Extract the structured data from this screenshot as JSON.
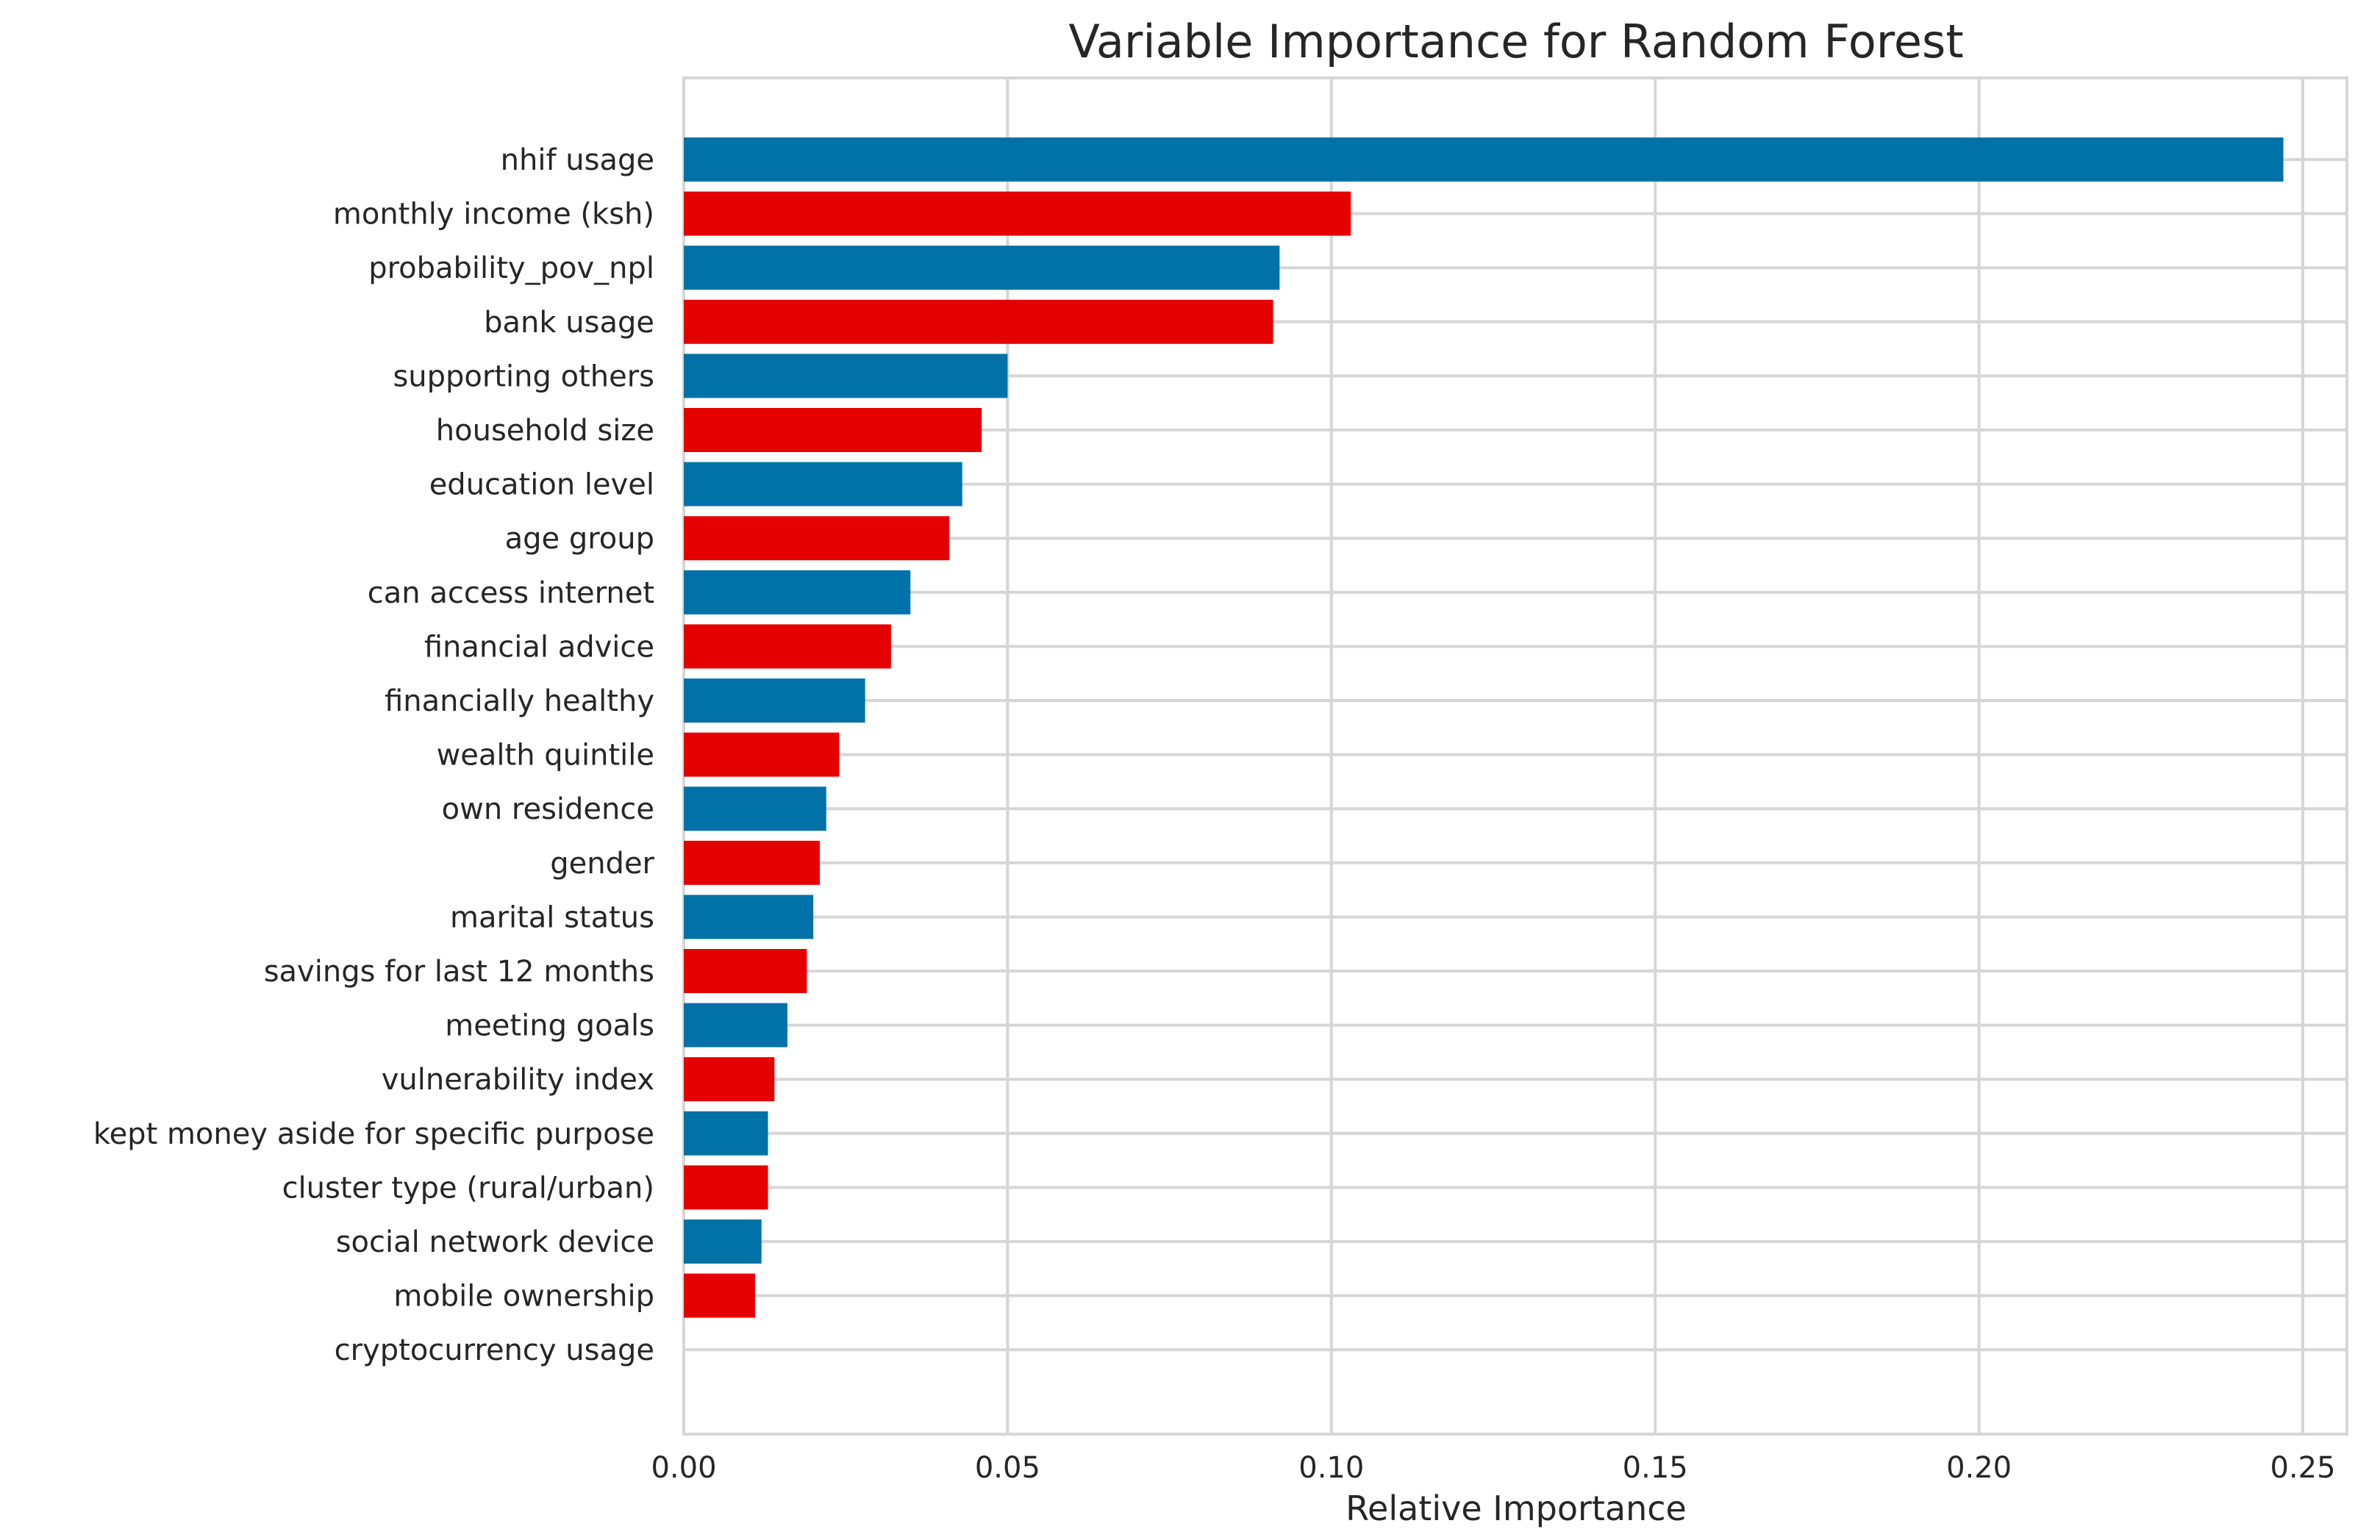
{
  "chart_data": {
    "type": "bar",
    "orientation": "horizontal",
    "title": "Variable Importance for Random Forest",
    "xlabel": "Relative Importance",
    "ylabel": "",
    "xlim": [
      0.0,
      0.26
    ],
    "xticks": [
      0.0,
      0.05,
      0.1,
      0.15,
      0.2,
      0.25
    ],
    "xtick_labels": [
      "0.00",
      "0.05",
      "0.10",
      "0.15",
      "0.20",
      "0.25"
    ],
    "grid": true,
    "colors": {
      "blue": "#0072a7",
      "red": "#e50000"
    },
    "categories": [
      "nhif usage",
      "monthly income (ksh)",
      "probability_pov_npl",
      "bank usage",
      "supporting others",
      "household size",
      "education level",
      "age group",
      "can access internet",
      "financial advice",
      "financially healthy",
      "wealth quintile",
      "own residence",
      "gender",
      "marital status",
      "savings for last 12 months",
      "meeting goals",
      "vulnerability index",
      "kept money aside for specific purpose",
      "cluster type (rural/urban)",
      "social network device",
      "mobile ownership",
      "cryptocurrency usage"
    ],
    "values": [
      0.247,
      0.103,
      0.092,
      0.091,
      0.05,
      0.046,
      0.043,
      0.041,
      0.035,
      0.032,
      0.028,
      0.024,
      0.022,
      0.021,
      0.02,
      0.019,
      0.016,
      0.014,
      0.013,
      0.013,
      0.012,
      0.011,
      0.0
    ],
    "bar_colors": [
      "blue",
      "red",
      "blue",
      "red",
      "blue",
      "red",
      "blue",
      "red",
      "blue",
      "red",
      "blue",
      "red",
      "blue",
      "red",
      "blue",
      "red",
      "blue",
      "red",
      "blue",
      "red",
      "blue",
      "red",
      "blue"
    ]
  }
}
